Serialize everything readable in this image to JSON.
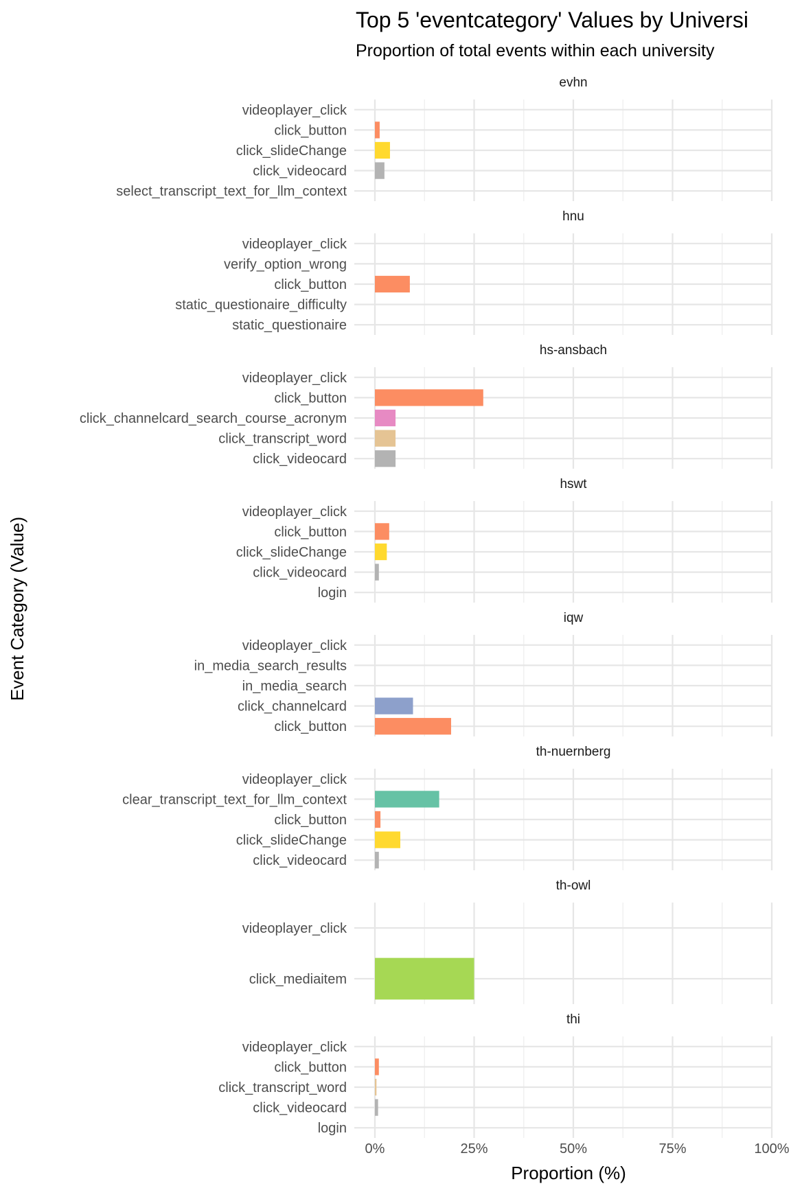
{
  "chart_data": {
    "type": "bar",
    "orientation": "horizontal",
    "title": "Top 5 'eventcategory' Values by Universi",
    "subtitle": "Proportion of total events within each university",
    "xlabel": "Proportion (%)",
    "ylabel": "Event Category (Value)",
    "xlim": [
      0,
      100
    ],
    "xticks": [
      "0%",
      "25%",
      "50%",
      "75%",
      "100%"
    ],
    "grid": true,
    "colors": {
      "videoplayer_click": "#66C2A5",
      "click_button": "#FC8D62",
      "click_slideChange": "#FFD92F",
      "click_videocard": "#B3B3B3",
      "click_channelcard_search_course_acronym": "#E78AC3",
      "click_transcript_word": "#E5C494",
      "click_channelcard": "#8DA0CB",
      "clear_transcript_text_for_llm_context": "#66C2A5",
      "click_mediaitem": "#A6D854",
      "select_transcript_text_for_llm_context": "#B3B3B3",
      "verify_option_wrong": "#B3B3B3",
      "static_questionaire_difficulty": "#B3B3B3",
      "static_questionaire": "#B3B3B3",
      "login": "#B3B3B3",
      "in_media_search_results": "#B3B3B3",
      "in_media_search": "#B3B3B3"
    },
    "panels": [
      {
        "name": "evhn",
        "categories": [
          {
            "label": "videoplayer_click",
            "value": 0
          },
          {
            "label": "click_button",
            "value": 1.2
          },
          {
            "label": "click_slideChange",
            "value": 3.8
          },
          {
            "label": "click_videocard",
            "value": 2.4
          },
          {
            "label": "select_transcript_text_for_llm_context",
            "value": 0
          }
        ]
      },
      {
        "name": "hnu",
        "categories": [
          {
            "label": "videoplayer_click",
            "value": 0
          },
          {
            "label": "verify_option_wrong",
            "value": 0
          },
          {
            "label": "click_button",
            "value": 8.8
          },
          {
            "label": "static_questionaire_difficulty",
            "value": 0
          },
          {
            "label": "static_questionaire",
            "value": 0
          }
        ]
      },
      {
        "name": "hs-ansbach",
        "categories": [
          {
            "label": "videoplayer_click",
            "value": 0
          },
          {
            "label": "click_button",
            "value": 27.3
          },
          {
            "label": "click_channelcard_search_course_acronym",
            "value": 5.2
          },
          {
            "label": "click_transcript_word",
            "value": 5.2
          },
          {
            "label": "click_videocard",
            "value": 5.2
          }
        ]
      },
      {
        "name": "hswt",
        "categories": [
          {
            "label": "videoplayer_click",
            "value": 0
          },
          {
            "label": "click_button",
            "value": 3.6
          },
          {
            "label": "click_slideChange",
            "value": 3.0
          },
          {
            "label": "click_videocard",
            "value": 1.0
          },
          {
            "label": "login",
            "value": 0
          }
        ]
      },
      {
        "name": "iqw",
        "categories": [
          {
            "label": "videoplayer_click",
            "value": 0
          },
          {
            "label": "in_media_search_results",
            "value": 0
          },
          {
            "label": "in_media_search",
            "value": 0
          },
          {
            "label": "click_channelcard",
            "value": 9.6
          },
          {
            "label": "click_button",
            "value": 19.2
          }
        ]
      },
      {
        "name": "th-nuernberg",
        "categories": [
          {
            "label": "videoplayer_click",
            "value": 0
          },
          {
            "label": "clear_transcript_text_for_llm_context",
            "value": 16.2
          },
          {
            "label": "click_button",
            "value": 1.4
          },
          {
            "label": "click_slideChange",
            "value": 6.4
          },
          {
            "label": "click_videocard",
            "value": 1.0
          }
        ]
      },
      {
        "name": "th-owl",
        "categories": [
          {
            "label": "videoplayer_click",
            "value": 0
          },
          {
            "label": "click_mediaitem",
            "value": 25.0
          }
        ]
      },
      {
        "name": "thi",
        "categories": [
          {
            "label": "videoplayer_click",
            "value": 0
          },
          {
            "label": "click_button",
            "value": 1.0
          },
          {
            "label": "click_transcript_word",
            "value": 0.4
          },
          {
            "label": "click_videocard",
            "value": 0.8
          },
          {
            "label": "login",
            "value": 0
          }
        ]
      }
    ]
  }
}
